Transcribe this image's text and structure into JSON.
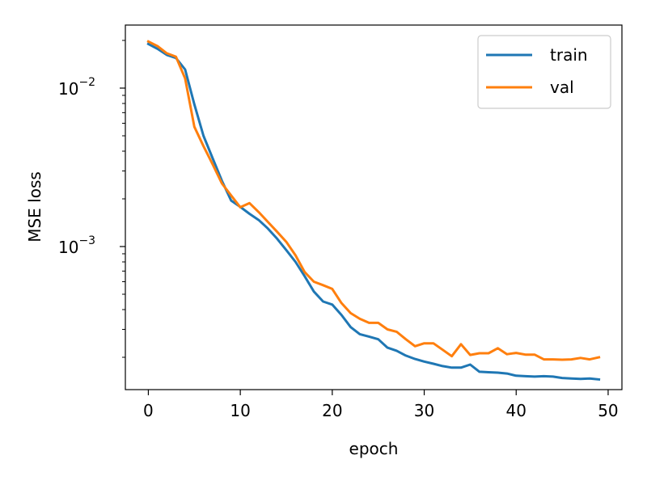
{
  "chart_data": {
    "type": "line",
    "title": "",
    "xlabel": "epoch",
    "ylabel": "MSE loss",
    "yscale": "log",
    "xlim": [
      -2.5,
      51.5
    ],
    "ylim": [
      0.000125,
      0.025
    ],
    "xticks": [
      0,
      10,
      20,
      30,
      40,
      50
    ],
    "xtick_labels": [
      "0",
      "10",
      "20",
      "30",
      "40",
      "50"
    ],
    "yticks_major": [
      0.001,
      0.01
    ],
    "ytick_labels_major": [
      {
        "base": "10",
        "exp": "−3"
      },
      {
        "base": "10",
        "exp": "−2"
      }
    ],
    "yticks_minor": [
      0.0002,
      0.0003,
      0.0004,
      0.0005,
      0.0006,
      0.0007,
      0.0008,
      0.0009,
      0.002,
      0.003,
      0.004,
      0.005,
      0.006,
      0.007,
      0.008,
      0.009,
      0.02
    ],
    "grid": false,
    "legend_position": "top-right",
    "x": [
      0,
      1,
      2,
      3,
      4,
      5,
      6,
      7,
      8,
      9,
      10,
      11,
      12,
      13,
      14,
      15,
      16,
      17,
      18,
      19,
      20,
      21,
      22,
      23,
      24,
      25,
      26,
      27,
      28,
      29,
      30,
      31,
      32,
      33,
      34,
      35,
      36,
      37,
      38,
      39,
      40,
      41,
      42,
      43,
      44,
      45,
      46,
      47,
      48,
      49
    ],
    "series": [
      {
        "name": "train",
        "color": "#1f77b4",
        "values": [
          0.019,
          0.0177,
          0.0162,
          0.0155,
          0.0131,
          0.0079,
          0.005,
          0.0036,
          0.0026,
          0.00195,
          0.00178,
          0.00161,
          0.00147,
          0.0013,
          0.00112,
          0.00095,
          0.0008,
          0.00065,
          0.00052,
          0.00045,
          0.00043,
          0.00037,
          0.00031,
          0.00028,
          0.00027,
          0.00026,
          0.00023,
          0.00022,
          0.000205,
          0.000195,
          0.000188,
          0.000182,
          0.000176,
          0.000172,
          0.000172,
          0.00018,
          0.000162,
          0.000161,
          0.00016,
          0.000158,
          0.000153,
          0.000152,
          0.000151,
          0.000152,
          0.000151,
          0.000148,
          0.000147,
          0.000146,
          0.000147,
          0.000145
        ]
      },
      {
        "name": "val",
        "color": "#ff7f0e",
        "values": [
          0.0197,
          0.0184,
          0.0166,
          0.0158,
          0.0115,
          0.0057,
          0.0043,
          0.0033,
          0.0025,
          0.0021,
          0.00177,
          0.00188,
          0.00165,
          0.00143,
          0.00124,
          0.00107,
          0.00088,
          0.00069,
          0.0006,
          0.00057,
          0.00054,
          0.00044,
          0.00038,
          0.00035,
          0.00033,
          0.00033,
          0.0003,
          0.00029,
          0.00026,
          0.000235,
          0.000245,
          0.000245,
          0.000223,
          0.000203,
          0.000242,
          0.000207,
          0.000212,
          0.000212,
          0.000228,
          0.000209,
          0.000213,
          0.000208,
          0.000208,
          0.000194,
          0.000194,
          0.000193,
          0.000194,
          0.000198,
          0.000194,
          0.0002
        ]
      }
    ]
  }
}
